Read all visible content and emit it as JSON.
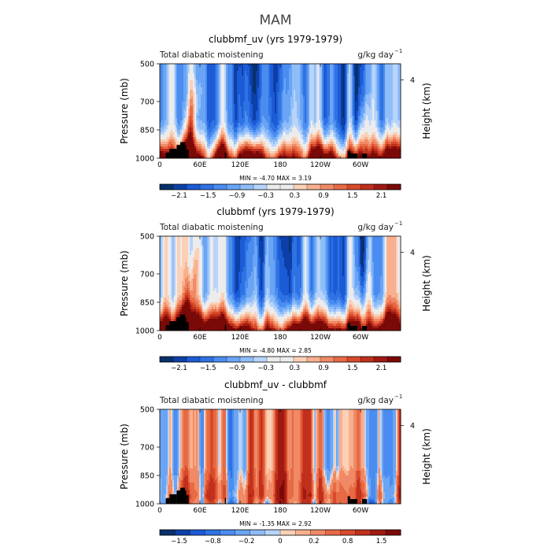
{
  "figure_title": "MAM",
  "chart_data": [
    {
      "type": "heatmap",
      "title": "clubbmf_uv (yrs 1979-1979)",
      "subtitle_left": "Total diabatic moistening",
      "units": "g/kg day",
      "units_exp": "−1",
      "ylabel": "Pressure (mb)",
      "ylabel_right": "Height (km)",
      "y_ticks": [
        "500",
        "700",
        "850",
        "1000"
      ],
      "y_right_ticks": [
        "4"
      ],
      "x_ticks": [
        "0",
        "60E",
        "120E",
        "180",
        "120W",
        "60W"
      ],
      "stats": "MIN =   -4.70   MAX =    3.19",
      "colorbar_labels": [
        "−2.1",
        "−1.5",
        "−0.9",
        "−0.3",
        "0.3",
        "0.9",
        "1.5",
        "2.1"
      ],
      "levels": [
        -2.4,
        -2.1,
        -1.8,
        -1.5,
        -1.2,
        -0.9,
        -0.6,
        -0.3,
        0,
        0.3,
        0.6,
        0.9,
        1.2,
        1.5,
        1.8,
        2.1,
        2.4
      ],
      "min": -4.7,
      "max": 3.19,
      "pattern": "full"
    },
    {
      "type": "heatmap",
      "title": "clubbmf (yrs 1979-1979)",
      "subtitle_left": "Total diabatic moistening",
      "units": "g/kg day",
      "units_exp": "−1",
      "ylabel": "Pressure (mb)",
      "ylabel_right": "Height (km)",
      "y_ticks": [
        "500",
        "700",
        "850",
        "1000"
      ],
      "y_right_ticks": [
        "4"
      ],
      "x_ticks": [
        "0",
        "60E",
        "120E",
        "180",
        "120W",
        "60W"
      ],
      "stats": "MIN =   -4.80   MAX =    2.85",
      "colorbar_labels": [
        "−2.1",
        "−1.5",
        "−0.9",
        "−0.3",
        "0.3",
        "0.9",
        "1.5",
        "2.1"
      ],
      "levels": [
        -2.4,
        -2.1,
        -1.8,
        -1.5,
        -1.2,
        -0.9,
        -0.6,
        -0.3,
        0,
        0.3,
        0.6,
        0.9,
        1.2,
        1.5,
        1.8,
        2.1,
        2.4
      ],
      "min": -4.8,
      "max": 2.85,
      "pattern": "full"
    },
    {
      "type": "heatmap",
      "title": "clubbmf_uv - clubbmf",
      "subtitle_left": "Total diabatic moistening",
      "units": "g/kg day",
      "units_exp": "−1",
      "ylabel": "Pressure (mb)",
      "ylabel_right": "Height (km)",
      "y_ticks": [
        "500",
        "700",
        "850",
        "1000"
      ],
      "y_right_ticks": [
        "4"
      ],
      "x_ticks": [
        "0",
        "60E",
        "120E",
        "180",
        "120W",
        "60W"
      ],
      "stats": "MIN =   -1.35   MAX =    2.92",
      "colorbar_labels": [
        "−1.5",
        "−0.8",
        "−0.2",
        "0",
        "0.2",
        "0.8",
        "1.5"
      ],
      "levels": [
        -2.0,
        -1.5,
        -1.0,
        -0.8,
        -0.5,
        -0.2,
        -0.1,
        0,
        0.1,
        0.2,
        0.5,
        0.8,
        1.0,
        1.5,
        2.0
      ],
      "min": -1.35,
      "max": 2.92,
      "pattern": "diff"
    }
  ],
  "colors": {
    "neg": [
      "#08306b",
      "#0d3fa8",
      "#1c5bd6",
      "#2f72e3",
      "#4a8cf0",
      "#6aa5f5",
      "#8fbdf8",
      "#b8d4fb"
    ],
    "mid": "#ececec",
    "pos": [
      "#fbd0b6",
      "#f8b08e",
      "#f08a66",
      "#e86a45",
      "#d84a2a",
      "#c0301c",
      "#a01a12",
      "#7a0a08"
    ],
    "terrain": "#000000"
  }
}
